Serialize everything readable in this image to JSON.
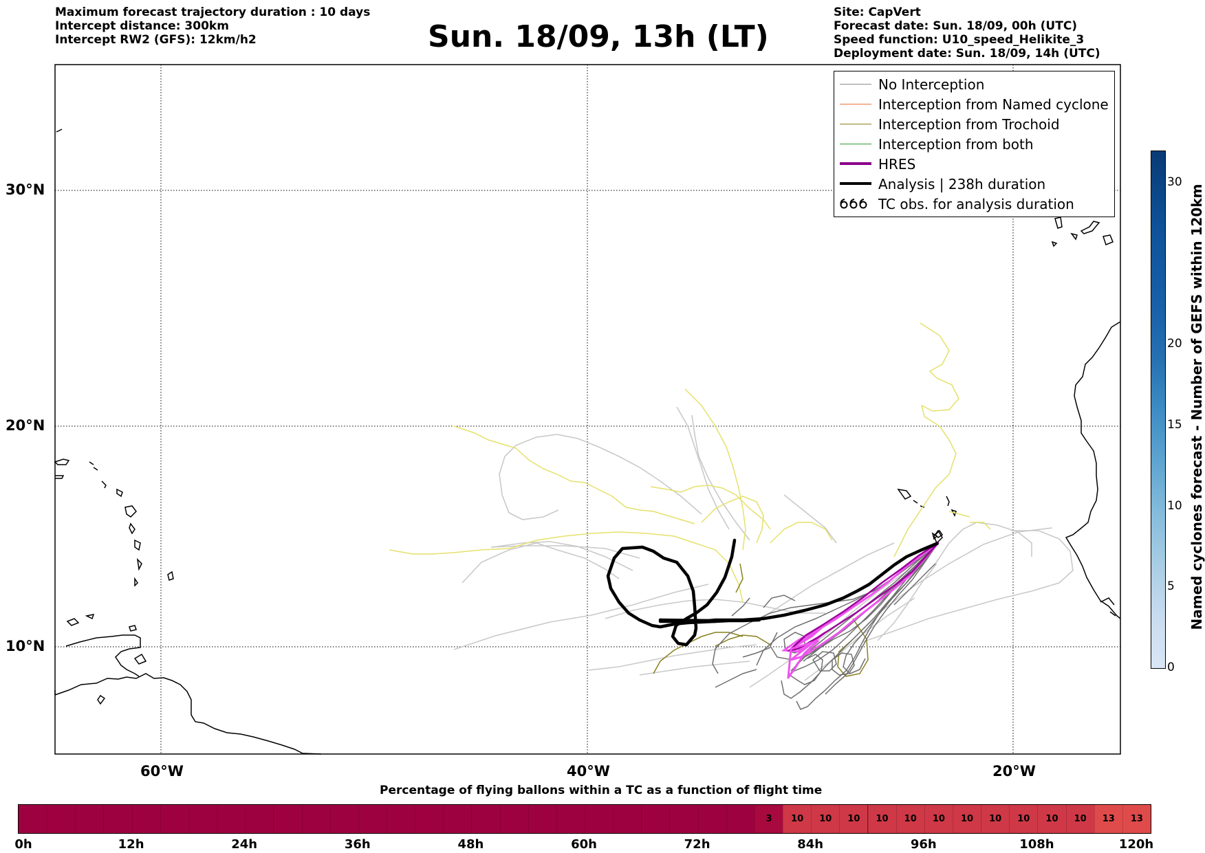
{
  "header_left": [
    "Maximum forecast trajectory duration : 10 days",
    "Intercept distance: 300km",
    "Intercept RW2 (GFS):  12km/h2"
  ],
  "title": "Sun. 18/09, 13h (LT)",
  "header_right": [
    "Site: CapVert",
    "Forecast date: Sun. 18/09, 00h (UTC)",
    "Speed function: U10_speed_Helikite_3",
    "Deployment date: Sun. 18/09, 14h (UTC)"
  ],
  "map": {
    "lat_labels": [
      "30°N",
      "20°N",
      "10°N"
    ],
    "lon_labels": [
      "60°W",
      "40°W",
      "20°W"
    ]
  },
  "legend": [
    {
      "label": "No Interception",
      "color": "#8c8c8c"
    },
    {
      "label": "Interception from Named cyclone",
      "color": "#f07040"
    },
    {
      "label": "Interception from Trochoid",
      "color": "#8a7f1e"
    },
    {
      "label": "Interception from both",
      "color": "#2e9e2e"
    },
    {
      "label": "HRES",
      "color": "#8b008b"
    },
    {
      "label": "Analysis | 238h duration",
      "color": "#000000"
    },
    {
      "label": "TC obs. for analysis duration",
      "icon": "tc-symbol-icon"
    }
  ],
  "colorbar": {
    "label": "Named cyclones forecast - Number of GEFS within 120km",
    "ticks": [
      "30",
      "20",
      "15",
      "10",
      "5",
      "0"
    ]
  },
  "progress_bar": {
    "title": "Percentage of flying ballons within a TC as a function of flight time",
    "ticks": [
      "0h",
      "12h",
      "24h",
      "36h",
      "48h",
      "60h",
      "72h",
      "84h",
      "96h",
      "108h",
      "120h"
    ],
    "cells": [
      {
        "value": "3"
      },
      {
        "value": "10"
      },
      {
        "value": "10"
      },
      {
        "value": "10"
      },
      {
        "value": "10"
      },
      {
        "value": "10"
      },
      {
        "value": "10"
      },
      {
        "value": "10"
      },
      {
        "value": "10"
      },
      {
        "value": "10"
      },
      {
        "value": "10"
      },
      {
        "value": "10"
      },
      {
        "value": "13"
      },
      {
        "value": "13"
      }
    ]
  }
}
